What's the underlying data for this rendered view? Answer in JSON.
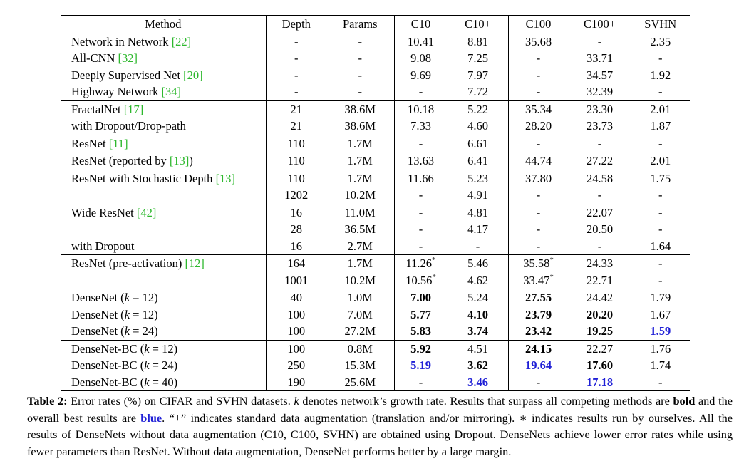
{
  "table": {
    "headers": [
      "Method",
      "Depth",
      "Params",
      "C10",
      "C10+",
      "C100",
      "C100+",
      "SVHN"
    ],
    "rows": [
      {
        "group_start": true,
        "method": "Network in Network ",
        "ref": "[22]",
        "depth": "-",
        "params": "-",
        "c10": {
          "t": "10.41"
        },
        "c10p": {
          "t": "8.81"
        },
        "c100": {
          "t": "35.68"
        },
        "c100p": {
          "t": "-"
        },
        "svhn": {
          "t": "2.35"
        }
      },
      {
        "group_start": false,
        "method": "All-CNN ",
        "ref": "[32]",
        "depth": "-",
        "params": "-",
        "c10": {
          "t": "9.08"
        },
        "c10p": {
          "t": "7.25"
        },
        "c100": {
          "t": "-"
        },
        "c100p": {
          "t": "33.71"
        },
        "svhn": {
          "t": "-"
        }
      },
      {
        "group_start": false,
        "method": "Deeply Supervised Net ",
        "ref": "[20]",
        "depth": "-",
        "params": "-",
        "c10": {
          "t": "9.69"
        },
        "c10p": {
          "t": "7.97"
        },
        "c100": {
          "t": "-"
        },
        "c100p": {
          "t": "34.57"
        },
        "svhn": {
          "t": "1.92"
        }
      },
      {
        "group_start": false,
        "method": "Highway Network ",
        "ref": "[34]",
        "depth": "-",
        "params": "-",
        "c10": {
          "t": "-"
        },
        "c10p": {
          "t": "7.72"
        },
        "c100": {
          "t": "-"
        },
        "c100p": {
          "t": "32.39"
        },
        "svhn": {
          "t": "-"
        }
      },
      {
        "group_start": true,
        "method": "FractalNet ",
        "ref": "[17]",
        "depth": "21",
        "params": "38.6M",
        "c10": {
          "t": "10.18"
        },
        "c10p": {
          "t": "5.22"
        },
        "c100": {
          "t": "35.34"
        },
        "c100p": {
          "t": "23.30"
        },
        "svhn": {
          "t": "2.01"
        }
      },
      {
        "group_start": false,
        "method": "with Dropout/Drop-path",
        "ref": "",
        "depth": "21",
        "params": "38.6M",
        "c10": {
          "t": "7.33"
        },
        "c10p": {
          "t": "4.60"
        },
        "c100": {
          "t": "28.20"
        },
        "c100p": {
          "t": "23.73"
        },
        "svhn": {
          "t": "1.87"
        }
      },
      {
        "group_start": true,
        "method": "ResNet ",
        "ref": "[11]",
        "depth": "110",
        "params": "1.7M",
        "c10": {
          "t": "-"
        },
        "c10p": {
          "t": "6.61"
        },
        "c100": {
          "t": "-"
        },
        "c100p": {
          "t": "-"
        },
        "svhn": {
          "t": "-"
        }
      },
      {
        "group_start": true,
        "method": "ResNet (reported by ",
        "ref": "[13]",
        "method_suffix": ")",
        "depth": "110",
        "params": "1.7M",
        "c10": {
          "t": "13.63"
        },
        "c10p": {
          "t": "6.41"
        },
        "c100": {
          "t": "44.74"
        },
        "c100p": {
          "t": "27.22"
        },
        "svhn": {
          "t": "2.01"
        }
      },
      {
        "group_start": true,
        "method": "ResNet with Stochastic Depth ",
        "ref": "[13]",
        "depth": "110",
        "params": "1.7M",
        "c10": {
          "t": "11.66"
        },
        "c10p": {
          "t": "5.23"
        },
        "c100": {
          "t": "37.80"
        },
        "c100p": {
          "t": "24.58"
        },
        "svhn": {
          "t": "1.75"
        }
      },
      {
        "group_start": false,
        "method": "",
        "ref": "",
        "depth": "1202",
        "params": "10.2M",
        "c10": {
          "t": "-"
        },
        "c10p": {
          "t": "4.91"
        },
        "c100": {
          "t": "-"
        },
        "c100p": {
          "t": "-"
        },
        "svhn": {
          "t": "-"
        }
      },
      {
        "group_start": true,
        "method": "Wide ResNet ",
        "ref": "[42]",
        "depth": "16",
        "params": "11.0M",
        "c10": {
          "t": "-"
        },
        "c10p": {
          "t": "4.81"
        },
        "c100": {
          "t": "-"
        },
        "c100p": {
          "t": "22.07"
        },
        "svhn": {
          "t": "-"
        }
      },
      {
        "group_start": false,
        "method": "",
        "ref": "",
        "depth": "28",
        "params": "36.5M",
        "c10": {
          "t": "-"
        },
        "c10p": {
          "t": "4.17"
        },
        "c100": {
          "t": "-"
        },
        "c100p": {
          "t": "20.50"
        },
        "svhn": {
          "t": "-"
        }
      },
      {
        "group_start": false,
        "method": "with Dropout",
        "ref": "",
        "depth": "16",
        "params": "2.7M",
        "c10": {
          "t": "-"
        },
        "c10p": {
          "t": "-"
        },
        "c100": {
          "t": "-"
        },
        "c100p": {
          "t": "-"
        },
        "svhn": {
          "t": "1.64"
        }
      },
      {
        "group_start": true,
        "method": "ResNet (pre-activation) ",
        "ref": "[12]",
        "depth": "164",
        "params": "1.7M",
        "c10": {
          "t": "11.26",
          "ast": "*"
        },
        "c10p": {
          "t": "5.46"
        },
        "c100": {
          "t": "35.58",
          "ast": "*"
        },
        "c100p": {
          "t": "24.33"
        },
        "svhn": {
          "t": "-"
        }
      },
      {
        "group_start": false,
        "method": "",
        "ref": "",
        "depth": "1001",
        "params": "10.2M",
        "c10": {
          "t": "10.56",
          "ast": "*"
        },
        "c10p": {
          "t": "4.62"
        },
        "c100": {
          "t": "33.47",
          "ast": "*"
        },
        "c100p": {
          "t": "22.71"
        },
        "svhn": {
          "t": "-"
        }
      },
      {
        "group_start": true,
        "method": "DenseNet (",
        "math": "k",
        "math_op": " = 12)",
        "ref": "",
        "depth": "40",
        "params": "1.0M",
        "c10": {
          "t": "7.00",
          "s": "bold"
        },
        "c10p": {
          "t": "5.24"
        },
        "c100": {
          "t": "27.55",
          "s": "bold"
        },
        "c100p": {
          "t": "24.42"
        },
        "svhn": {
          "t": "1.79"
        }
      },
      {
        "group_start": false,
        "method": "DenseNet (",
        "math": "k",
        "math_op": " = 12)",
        "ref": "",
        "depth": "100",
        "params": "7.0M",
        "c10": {
          "t": "5.77",
          "s": "bold"
        },
        "c10p": {
          "t": "4.10",
          "s": "bold"
        },
        "c100": {
          "t": "23.79",
          "s": "bold"
        },
        "c100p": {
          "t": "20.20",
          "s": "bold"
        },
        "svhn": {
          "t": "1.67"
        }
      },
      {
        "group_start": false,
        "method": "DenseNet (",
        "math": "k",
        "math_op": " = 24)",
        "ref": "",
        "depth": "100",
        "params": "27.2M",
        "c10": {
          "t": "5.83",
          "s": "bold"
        },
        "c10p": {
          "t": "3.74",
          "s": "bold"
        },
        "c100": {
          "t": "23.42",
          "s": "bold"
        },
        "c100p": {
          "t": "19.25",
          "s": "bold"
        },
        "svhn": {
          "t": "1.59",
          "s": "blue"
        }
      },
      {
        "group_start": true,
        "method": "DenseNet-BC (",
        "math": "k",
        "math_op": " = 12)",
        "ref": "",
        "depth": "100",
        "params": "0.8M",
        "c10": {
          "t": "5.92",
          "s": "bold"
        },
        "c10p": {
          "t": "4.51"
        },
        "c100": {
          "t": "24.15",
          "s": "bold"
        },
        "c100p": {
          "t": "22.27"
        },
        "svhn": {
          "t": "1.76"
        }
      },
      {
        "group_start": false,
        "method": "DenseNet-BC (",
        "math": "k",
        "math_op": " = 24)",
        "ref": "",
        "depth": "250",
        "params": "15.3M",
        "c10": {
          "t": "5.19",
          "s": "blue"
        },
        "c10p": {
          "t": "3.62",
          "s": "bold"
        },
        "c100": {
          "t": "19.64",
          "s": "blue"
        },
        "c100p": {
          "t": "17.60",
          "s": "bold"
        },
        "svhn": {
          "t": "1.74"
        }
      },
      {
        "group_start": false,
        "method": "DenseNet-BC (",
        "math": "k",
        "math_op": " = 40)",
        "ref": "",
        "depth": "190",
        "params": "25.6M",
        "c10": {
          "t": "-"
        },
        "c10p": {
          "t": "3.46",
          "s": "blue"
        },
        "c100": {
          "t": "-"
        },
        "c100p": {
          "t": "17.18",
          "s": "blue"
        },
        "svhn": {
          "t": "-"
        }
      }
    ]
  },
  "caption": {
    "label": "Table 2:",
    "p1": " Error rates (%) on CIFAR and SVHN datasets. ",
    "k_symbol": "k",
    "p2": " denotes network’s growth rate. Results that surpass all competing methods are ",
    "bold_word": "bold",
    "p3": " and the overall best results are ",
    "blue_word": "blue",
    "p4": ". “+” indicates standard data augmentation (translation and/or mirroring). ",
    "ast_symbol": "∗",
    "p5": " indicates results run by ourselves. All the results of DenseNets without data augmentation (C10, C100, SVHN) are obtained using Dropout. DenseNets achieve lower error rates while using fewer parameters than ResNet. Without data augmentation, DenseNet performs better by a large margin."
  },
  "colors": {
    "reference_link": "#2db82d",
    "best_result": "#1f1fd6",
    "rule": "#000000"
  }
}
